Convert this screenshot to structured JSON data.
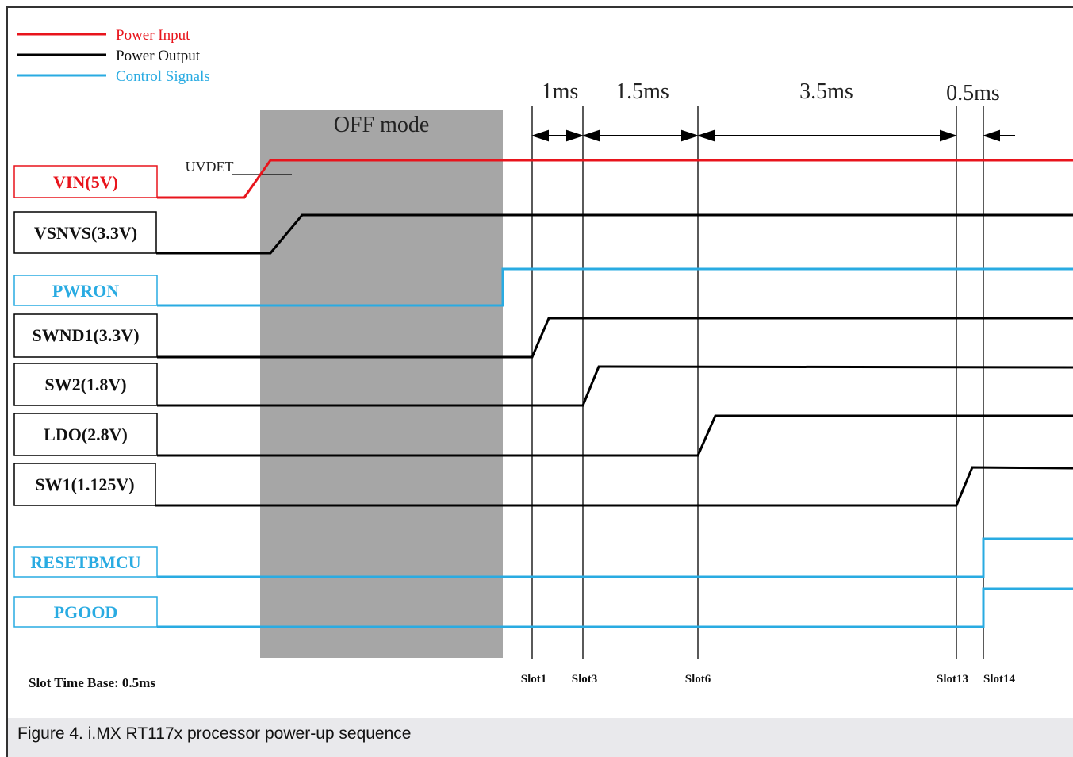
{
  "legend": [
    {
      "label": "Power Input",
      "color": "#e8141c"
    },
    {
      "label": "Power Output",
      "color": "#000000"
    },
    {
      "label": "Control Signals",
      "color": "#29abe2"
    }
  ],
  "off_mode_label": "OFF mode",
  "uvdet_label": "UVDET",
  "durations": [
    "1ms",
    "1.5ms",
    "3.5ms",
    "0.5ms"
  ],
  "signals": [
    {
      "label": "VIN(5V)",
      "kind": "input"
    },
    {
      "label": "VSNVS(3.3V)",
      "kind": "output"
    },
    {
      "label": "PWRON",
      "kind": "control"
    },
    {
      "label": "SWND1(3.3V)",
      "kind": "output"
    },
    {
      "label": "SW2(1.8V)",
      "kind": "output"
    },
    {
      "label": "LDO(2.8V)",
      "kind": "output"
    },
    {
      "label": "SW1(1.125V)",
      "kind": "output"
    },
    {
      "label": "RESETBMCU",
      "kind": "control"
    },
    {
      "label": "PGOOD",
      "kind": "control"
    }
  ],
  "slots": [
    "Slot1",
    "Slot3",
    "Slot6",
    "Slot13",
    "Slot14"
  ],
  "time_base": "Slot Time Base: 0.5ms",
  "caption": "Figure 4.  i.MX RT117x processor power-up sequence",
  "colors": {
    "input": "#e8141c",
    "output": "#000000",
    "control": "#29abe2",
    "off_mode": "#a6a6a6"
  }
}
